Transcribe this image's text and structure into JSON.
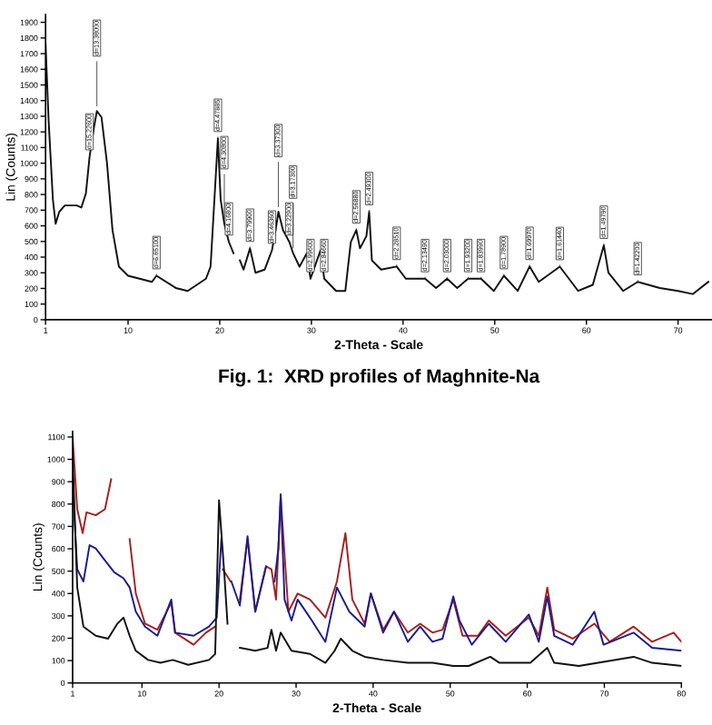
{
  "chart_data": [
    {
      "type": "line",
      "xlabel": "2-Theta - Scale",
      "ylabel": "Lin (Counts)",
      "xlim": [
        1,
        73.7
      ],
      "xticks": [
        1,
        10,
        20,
        30,
        40,
        50,
        60,
        70
      ],
      "ylim": [
        0,
        1950
      ],
      "yticks": [
        0,
        100,
        200,
        300,
        400,
        500,
        600,
        700,
        800,
        900,
        1000,
        1100,
        1200,
        1300,
        1400,
        1500,
        1600,
        1700,
        1800,
        1900
      ],
      "grid": false,
      "series": [
        {
          "color": "#111111",
          "x": [
            1,
            1.33,
            1.8,
            2.1,
            2.5,
            3.1,
            4.4,
            4.9,
            5.4,
            5.8,
            6.3,
            6.6,
            7.1,
            7.7,
            8.3,
            9.0,
            10,
            12.6,
            13.1,
            15.2,
            16.5,
            18.5,
            19.0,
            19.8,
            20.1,
            20.5,
            21.0,
            21.5,
            21.9,
            22.2,
            22.6,
            23.3,
            23.9,
            24.9,
            25.7,
            26.1,
            26.4,
            26.9,
            27.6,
            28.0,
            28.7,
            29.5,
            29.9,
            31.0,
            31.4,
            32.7,
            33.7,
            34.3,
            34.9,
            35.3,
            36.0,
            36.3,
            36.6,
            37.6,
            39.3,
            40.3,
            42.4,
            43.6,
            44.8,
            45.9,
            47.1,
            48.5,
            49.9,
            51.0,
            52.5,
            53.8,
            54.8,
            57.1,
            59.1,
            60.7,
            61.9,
            62.4,
            64.0,
            65.6,
            68.0,
            70.0,
            71.6,
            73.3
          ],
          "values": [
            1763,
            1275,
            767,
            613,
            690,
            730,
            730,
            717,
            807,
            1041,
            1236,
            1333,
            1294,
            1002,
            573,
            339,
            281,
            242,
            281,
            203,
            184,
            262,
            339,
            1158,
            768,
            613,
            496,
            425,
            null,
            379,
            320,
            456,
            300,
            320,
            444,
            573,
            690,
            573,
            496,
            425,
            339,
            425,
            262,
            444,
            262,
            184,
            184,
            496,
            573,
            456,
            534,
            690,
            379,
            320,
            340,
            262,
            262,
            203,
            262,
            203,
            262,
            262,
            184,
            281,
            184,
            340,
            242,
            339,
            184,
            223,
            475,
            300,
            184,
            242,
            203,
            184,
            164,
            242
          ]
        }
      ],
      "annotations": [
        {
          "text": "d=15.22600",
          "x": 5.8,
          "y": 1041
        },
        {
          "text": "d=13.38000",
          "x": 6.6,
          "y": 1333
        },
        {
          "text": "d=6.65100",
          "x": 13.1,
          "y": 281
        },
        {
          "text": "d=4.47885",
          "x": 19.8,
          "y": 1158
        },
        {
          "text": "d=4.30800",
          "x": 20.5,
          "y": 613
        },
        {
          "text": "d=4.16800",
          "x": 21.0,
          "y": 496
        },
        {
          "text": "d=3.79900",
          "x": 23.3,
          "y": 456
        },
        {
          "text": "d=3.46360",
          "x": 25.7,
          "y": 444
        },
        {
          "text": "d=3.37300",
          "x": 26.4,
          "y": 690
        },
        {
          "text": "d=3.22900",
          "x": 27.6,
          "y": 496
        },
        {
          "text": "d=3.17300",
          "x": 28.0,
          "y": 425
        },
        {
          "text": "d=2.99600",
          "x": 29.9,
          "y": 262
        },
        {
          "text": "d=2.84660",
          "x": 31.4,
          "y": 262
        },
        {
          "text": "d=2.56880",
          "x": 34.9,
          "y": 573
        },
        {
          "text": "d=2.49300",
          "x": 36.3,
          "y": 690
        },
        {
          "text": "d=2.28510",
          "x": 39.3,
          "y": 340
        },
        {
          "text": "d=2.13490",
          "x": 42.4,
          "y": 262
        },
        {
          "text": "d=2.03000",
          "x": 44.8,
          "y": 262
        },
        {
          "text": "d=1.93200",
          "x": 47.1,
          "y": 262
        },
        {
          "text": "d=1.83990",
          "x": 48.5,
          "y": 262
        },
        {
          "text": "d=1.78900",
          "x": 51.0,
          "y": 281
        },
        {
          "text": "d=1.69970",
          "x": 53.8,
          "y": 340
        },
        {
          "text": "d=1.61440",
          "x": 57.1,
          "y": 339
        },
        {
          "text": "d=1.49790",
          "x": 61.9,
          "y": 475
        },
        {
          "text": "d=1.42200",
          "x": 65.6,
          "y": 242
        },
        "Fig. 1:  XRD profiles of Maghnite-Na"
      ]
    },
    {
      "type": "line",
      "xlabel": "2-Theta - Scale",
      "ylabel": "Lin (Counts)",
      "xlim": [
        1,
        80
      ],
      "xticks": [
        1,
        10,
        20,
        30,
        40,
        50,
        60,
        70,
        80
      ],
      "ylim": [
        0,
        1125
      ],
      "yticks": [
        0,
        100,
        200,
        300,
        400,
        500,
        600,
        700,
        800,
        900,
        1000,
        1100
      ],
      "grid": false,
      "series": [
        {
          "color": "#a52020",
          "x": [
            1,
            1.6,
            2.3,
            2.8,
            4.0,
            5.2,
            6.0,
            6.8,
            7.6,
            8.4,
            9.2,
            10.4,
            12.0,
            13.8,
            14.3,
            16.7,
            18.3,
            19.5,
            20.0,
            20.5,
            21.5,
            22.1,
            22.7,
            23.7,
            24.7,
            26.1,
            26.8,
            27.4,
            28.0,
            29.0,
            30.2,
            31.8,
            33.8,
            35.3,
            36.4,
            37.3,
            38.9,
            39.7,
            41.3,
            42.7,
            44.5,
            46.1,
            47.7,
            49.0,
            50.4,
            51.6,
            53.6,
            55.0,
            57.2,
            60.2,
            61.5,
            62.6,
            63.5,
            65.9,
            68.7,
            70.7,
            73.8,
            76.2,
            79.0,
            80
          ],
          "values": [
            1100,
            777,
            670,
            763,
            750,
            777,
            911,
            null,
            null,
            643,
            400,
            265,
            238,
            359,
            225,
            171,
            225,
            252,
            null,
            508,
            454,
            null,
            373,
            643,
            319,
            521,
            508,
            373,
            831,
            319,
            400,
            373,
            292,
            454,
            670,
            373,
            265,
            400,
            238,
            319,
            225,
            265,
            225,
            238,
            373,
            211,
            211,
            279,
            211,
            292,
            211,
            427,
            238,
            198,
            265,
            184,
            252,
            184,
            225,
            184
          ]
        },
        {
          "color": "#1c1c8c",
          "x": [
            1,
            1.6,
            2.4,
            3.2,
            4.0,
            5.2,
            6.4,
            7.6,
            8.4,
            9.2,
            10.4,
            12.0,
            13.8,
            14.3,
            16.7,
            18.7,
            19.7,
            20.3,
            21.1,
            21.6,
            22.7,
            23.7,
            24.7,
            26.1,
            26.8,
            27.2,
            27.7,
            28.0,
            28.5,
            29.4,
            30.2,
            31.8,
            33.8,
            35.3,
            36.9,
            38.9,
            39.7,
            41.3,
            42.7,
            44.5,
            46.1,
            47.7,
            49.0,
            50.4,
            51.2,
            52.8,
            55.0,
            57.2,
            60.2,
            61.5,
            62.6,
            63.5,
            65.9,
            68.7,
            69.9,
            73.8,
            76.2,
            80
          ],
          "values": [
            884,
            508,
            454,
            616,
            602,
            548,
            495,
            468,
            427,
            319,
            252,
            211,
            373,
            225,
            211,
            252,
            292,
            643,
            null,
            454,
            346,
            656,
            319,
            521,
            null,
            454,
            602,
            844,
            373,
            279,
            373,
            292,
            184,
            427,
            319,
            252,
            400,
            225,
            319,
            184,
            252,
            184,
            198,
            387,
            279,
            171,
            265,
            184,
            306,
            184,
            387,
            211,
            171,
            319,
            171,
            225,
            157,
            144
          ]
        },
        {
          "color": "#111111",
          "x": [
            1,
            1.6,
            2.4,
            4.0,
            5.6,
            6.8,
            7.6,
            8.4,
            9.2,
            10.8,
            12.4,
            14.0,
            16.0,
            18.7,
            19.5,
            20.0,
            20.7,
            21.1,
            22.1,
            22.7,
            24.7,
            26.3,
            26.8,
            27.4,
            28.0,
            29.4,
            31.8,
            33.8,
            35.0,
            35.8,
            37.3,
            38.9,
            41.3,
            44.5,
            47.7,
            50.4,
            52.4,
            55.2,
            56.4,
            60.4,
            62.6,
            63.5,
            66.7,
            73.8,
            76.2,
            80
          ],
          "values": [
            1019,
            427,
            252,
            211,
            198,
            265,
            292,
            211,
            144,
            103,
            90,
            103,
            81,
            103,
            130,
            817,
            481,
            265,
            null,
            157,
            144,
            157,
            238,
            144,
            225,
            144,
            130,
            90,
            144,
            198,
            144,
            117,
            103,
            90,
            90,
            76,
            76,
            117,
            90,
            90,
            157,
            90,
            76,
            117,
            90,
            76
          ]
        }
      ]
    }
  ]
}
